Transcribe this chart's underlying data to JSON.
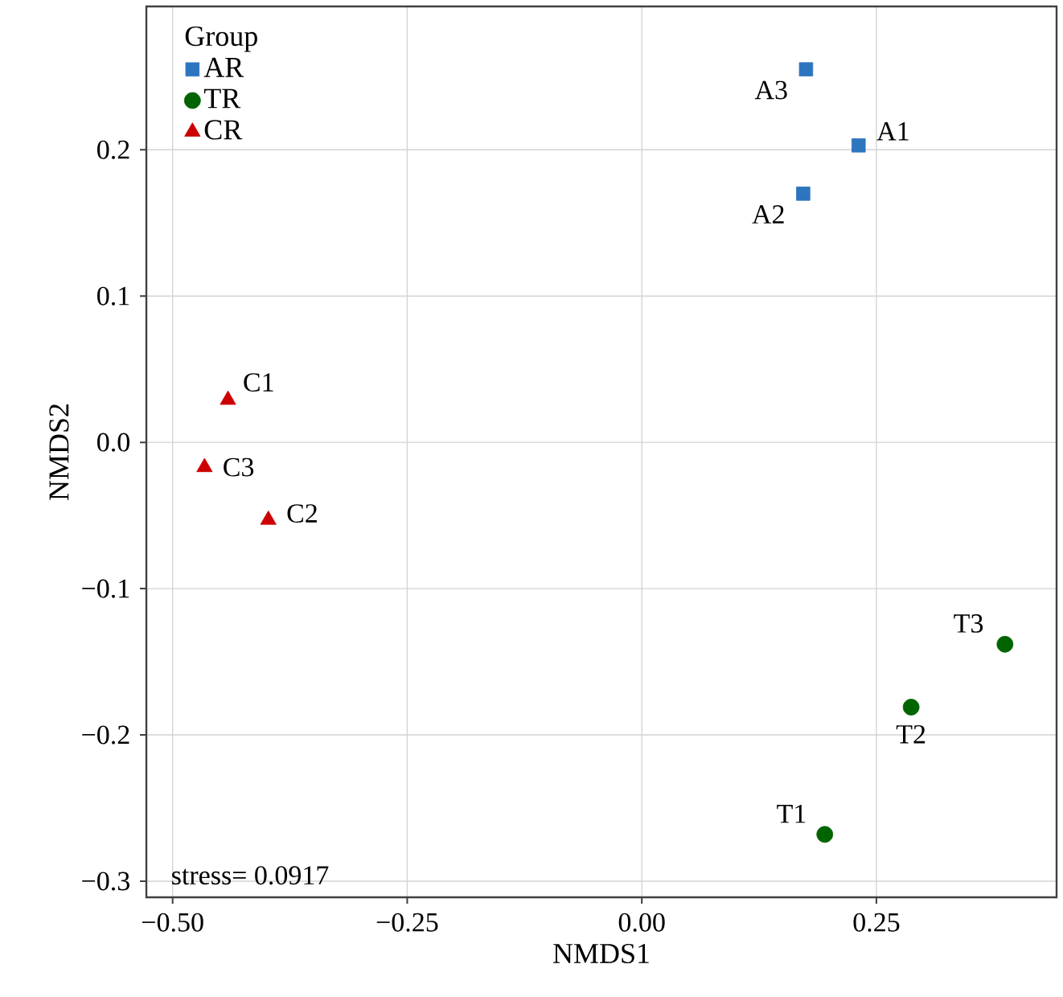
{
  "chart_data": {
    "type": "scatter",
    "xlabel": "NMDS1",
    "ylabel": "NMDS2",
    "legend_title": "Group",
    "series": [
      {
        "name": "AR",
        "color": "#2e75c0",
        "marker": "square",
        "x": [
          0.231,
          0.172,
          0.175
        ],
        "values": [
          0.203,
          0.17,
          0.255
        ]
      },
      {
        "name": "TR",
        "color": "#006400",
        "marker": "circle",
        "x": [
          0.195,
          0.287,
          0.387
        ],
        "values": [
          -0.268,
          -0.181,
          -0.138
        ]
      },
      {
        "name": "CR",
        "color": "#cc0000",
        "marker": "triangle",
        "x": [
          -0.441,
          -0.398,
          -0.466
        ],
        "values": [
          0.029,
          -0.053,
          -0.017
        ]
      }
    ],
    "annotations": [
      {
        "text": "A1",
        "x": 0.231,
        "y": 0.203
      },
      {
        "text": "A2",
        "x": 0.172,
        "y": 0.17
      },
      {
        "text": "A3",
        "x": 0.175,
        "y": 0.255
      },
      {
        "text": "T1",
        "x": 0.195,
        "y": -0.268
      },
      {
        "text": "T2",
        "x": 0.287,
        "y": -0.181
      },
      {
        "text": "T3",
        "x": 0.387,
        "y": -0.138
      },
      {
        "text": "C1",
        "x": -0.441,
        "y": 0.029
      },
      {
        "text": "C2",
        "x": -0.398,
        "y": -0.053
      },
      {
        "text": "C3",
        "x": -0.466,
        "y": -0.017
      },
      "stress= 0.0917"
    ],
    "xlim": [
      -0.528,
      0.442
    ],
    "ylim": [
      -0.311,
      0.298
    ],
    "xticks": [
      {
        "value": -0.5,
        "label": "−0.50"
      },
      {
        "value": -0.25,
        "label": "−0.25"
      },
      {
        "value": 0,
        "label": "0.00"
      },
      {
        "value": 0.25,
        "label": "0.25"
      }
    ],
    "yticks": [
      {
        "value": -0.3,
        "label": "−0.3"
      },
      {
        "value": -0.2,
        "label": "−0.2"
      },
      {
        "value": -0.1,
        "label": "−0.1"
      },
      {
        "value": 0,
        "label": "0.0"
      },
      0.1,
      0.2
    ],
    "grid": true,
    "legend": "top left"
  }
}
